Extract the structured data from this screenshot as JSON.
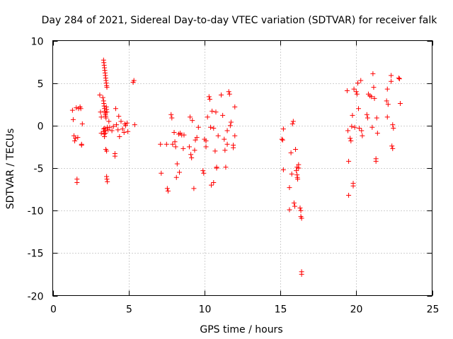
{
  "chart_data": {
    "type": "scatter",
    "title": "Day 284 of 2021, Sidereal Day-to-day VTEC variation (SDTVAR) for receiver falk",
    "xlabel": "GPS time / hours",
    "ylabel": "SDTVAR / TECUs",
    "xlim": [
      0,
      25
    ],
    "ylim": [
      -20,
      10
    ],
    "xticks": [
      0,
      5,
      10,
      15,
      20,
      25
    ],
    "yticks": [
      -20,
      -15,
      -10,
      -5,
      0,
      5,
      10
    ],
    "xtick_labels": [
      "0",
      "5",
      "10",
      "15",
      "20",
      "25"
    ],
    "ytick_labels": [
      "-20",
      "-15",
      "-10",
      "-5",
      "0",
      "5",
      "10"
    ],
    "grid": true,
    "marker": "plus",
    "color": "#ff0000",
    "series": [
      {
        "name": "SDTVAR",
        "points": [
          [
            1.3,
            1.8
          ],
          [
            1.35,
            0.7
          ],
          [
            1.4,
            -1.2
          ],
          [
            1.45,
            -1.8
          ],
          [
            1.5,
            -1.5
          ],
          [
            1.55,
            2.1
          ],
          [
            1.6,
            -6.3
          ],
          [
            1.6,
            -6.7
          ],
          [
            1.65,
            -1.4
          ],
          [
            1.7,
            2.0
          ],
          [
            1.8,
            2.2
          ],
          [
            1.85,
            2.0
          ],
          [
            1.9,
            -2.2
          ],
          [
            1.9,
            -2.3
          ],
          [
            1.95,
            0.2
          ],
          [
            3.1,
            3.6
          ],
          [
            3.15,
            1.6
          ],
          [
            3.2,
            1.0
          ],
          [
            3.2,
            -0.9
          ],
          [
            3.3,
            3.3
          ],
          [
            3.35,
            7.7
          ],
          [
            3.37,
            7.4
          ],
          [
            3.39,
            7.1
          ],
          [
            3.41,
            6.8
          ],
          [
            3.43,
            6.5
          ],
          [
            3.45,
            6.2
          ],
          [
            3.47,
            5.9
          ],
          [
            3.49,
            5.6
          ],
          [
            3.51,
            5.3
          ],
          [
            3.53,
            5.0
          ],
          [
            3.55,
            4.7
          ],
          [
            3.57,
            4.5
          ],
          [
            3.35,
            2.9
          ],
          [
            3.37,
            2.6
          ],
          [
            3.39,
            2.3
          ],
          [
            3.41,
            2.0
          ],
          [
            3.43,
            1.7
          ],
          [
            3.45,
            1.5
          ],
          [
            3.47,
            1.3
          ],
          [
            3.49,
            1.1
          ],
          [
            3.51,
            0.9
          ],
          [
            3.53,
            2.2
          ],
          [
            3.55,
            1.9
          ],
          [
            3.57,
            1.6
          ],
          [
            3.35,
            -0.4
          ],
          [
            3.37,
            -0.7
          ],
          [
            3.39,
            -1.0
          ],
          [
            3.41,
            -1.3
          ],
          [
            3.43,
            -0.3
          ],
          [
            3.45,
            -0.6
          ],
          [
            3.47,
            -0.9
          ],
          [
            3.5,
            -2.8
          ],
          [
            3.55,
            -3.0
          ],
          [
            3.55,
            -6.0
          ],
          [
            3.57,
            -6.3
          ],
          [
            3.6,
            -6.6
          ],
          [
            3.6,
            -0.2
          ],
          [
            3.65,
            -0.5
          ],
          [
            3.7,
            0.5
          ],
          [
            3.75,
            -0.2
          ],
          [
            3.9,
            -0.6
          ],
          [
            4.0,
            -0.1
          ],
          [
            4.1,
            -3.3
          ],
          [
            4.1,
            -3.6
          ],
          [
            4.15,
            2.0
          ],
          [
            4.2,
            0.1
          ],
          [
            4.3,
            -0.5
          ],
          [
            4.35,
            1.1
          ],
          [
            4.4,
            -1.3
          ],
          [
            4.5,
            0.5
          ],
          [
            4.6,
            -0.4
          ],
          [
            4.7,
            -0.8
          ],
          [
            4.75,
            0.2
          ],
          [
            4.8,
            0.0
          ],
          [
            4.9,
            0.3
          ],
          [
            4.95,
            -0.7
          ],
          [
            5.3,
            5.1
          ],
          [
            5.35,
            5.3
          ],
          [
            5.4,
            0.1
          ],
          [
            7.1,
            -2.2
          ],
          [
            7.15,
            -5.6
          ],
          [
            7.5,
            -2.2
          ],
          [
            7.55,
            -7.4
          ],
          [
            7.6,
            -7.7
          ],
          [
            7.8,
            1.3
          ],
          [
            7.85,
            0.9
          ],
          [
            7.9,
            -2.2
          ],
          [
            8.0,
            -0.8
          ],
          [
            8.05,
            -1.9
          ],
          [
            8.1,
            -2.5
          ],
          [
            8.15,
            -6.1
          ],
          [
            8.2,
            -4.5
          ],
          [
            8.3,
            -1.0
          ],
          [
            8.35,
            -5.5
          ],
          [
            8.4,
            -0.9
          ],
          [
            8.5,
            -1.1
          ],
          [
            8.6,
            -2.7
          ],
          [
            8.65,
            -1.1
          ],
          [
            9.0,
            -2.5
          ],
          [
            9.05,
            1.0
          ],
          [
            9.1,
            -3.4
          ],
          [
            9.15,
            -3.8
          ],
          [
            9.2,
            0.6
          ],
          [
            9.3,
            -7.4
          ],
          [
            9.35,
            -2.9
          ],
          [
            9.4,
            -1.7
          ],
          [
            9.5,
            -1.4
          ],
          [
            9.6,
            -0.2
          ],
          [
            9.9,
            -5.3
          ],
          [
            9.95,
            -5.6
          ],
          [
            10.0,
            -1.6
          ],
          [
            10.1,
            -1.8
          ],
          [
            10.1,
            -2.5
          ],
          [
            10.2,
            1.0
          ],
          [
            10.3,
            3.4
          ],
          [
            10.35,
            3.1
          ],
          [
            10.4,
            -0.2
          ],
          [
            10.45,
            -7.0
          ],
          [
            10.5,
            1.7
          ],
          [
            10.6,
            -0.3
          ],
          [
            10.6,
            -6.7
          ],
          [
            10.7,
            -3.0
          ],
          [
            10.75,
            1.6
          ],
          [
            10.8,
            -4.9
          ],
          [
            10.8,
            -5.0
          ],
          [
            10.9,
            -1.2
          ],
          [
            11.1,
            3.6
          ],
          [
            11.2,
            1.2
          ],
          [
            11.3,
            -1.6
          ],
          [
            11.35,
            -2.9
          ],
          [
            11.4,
            -4.9
          ],
          [
            11.5,
            -2.2
          ],
          [
            11.5,
            -0.6
          ],
          [
            11.6,
            4.0
          ],
          [
            11.65,
            3.7
          ],
          [
            11.7,
            0.0
          ],
          [
            11.75,
            0.4
          ],
          [
            11.9,
            -2.3
          ],
          [
            11.9,
            -2.6
          ],
          [
            12.0,
            2.2
          ],
          [
            12.0,
            -1.2
          ],
          [
            15.1,
            -1.6
          ],
          [
            15.15,
            -1.7
          ],
          [
            15.2,
            -0.4
          ],
          [
            15.2,
            -5.2
          ],
          [
            15.6,
            -9.9
          ],
          [
            15.6,
            -7.3
          ],
          [
            15.7,
            -3.2
          ],
          [
            15.75,
            -5.7
          ],
          [
            15.8,
            0.2
          ],
          [
            15.85,
            0.5
          ],
          [
            15.9,
            -9.1
          ],
          [
            15.95,
            -9.5
          ],
          [
            16.0,
            -2.8
          ],
          [
            16.05,
            -5.3
          ],
          [
            16.1,
            -4.9
          ],
          [
            16.1,
            -5.8
          ],
          [
            16.12,
            -6.1
          ],
          [
            16.14,
            -6.3
          ],
          [
            16.2,
            -5.0
          ],
          [
            16.2,
            -4.6
          ],
          [
            16.3,
            -9.7
          ],
          [
            16.35,
            -10.0
          ],
          [
            16.35,
            -10.7
          ],
          [
            16.4,
            -10.9
          ],
          [
            16.4,
            -17.2
          ],
          [
            16.4,
            -17.5
          ],
          [
            19.4,
            4.1
          ],
          [
            19.45,
            -0.6
          ],
          [
            19.5,
            -4.2
          ],
          [
            19.5,
            -8.2
          ],
          [
            19.6,
            -1.5
          ],
          [
            19.65,
            -1.8
          ],
          [
            19.7,
            -0.1
          ],
          [
            19.75,
            1.2
          ],
          [
            19.8,
            -6.8
          ],
          [
            19.8,
            -7.1
          ],
          [
            19.85,
            4.3
          ],
          [
            19.9,
            -0.2
          ],
          [
            20.0,
            4.0
          ],
          [
            20.05,
            3.7
          ],
          [
            20.1,
            5.0
          ],
          [
            20.15,
            2.0
          ],
          [
            20.2,
            -0.3
          ],
          [
            20.3,
            5.3
          ],
          [
            20.35,
            -0.6
          ],
          [
            20.4,
            -1.2
          ],
          [
            20.7,
            1.3
          ],
          [
            20.75,
            0.9
          ],
          [
            20.8,
            3.7
          ],
          [
            20.9,
            3.5
          ],
          [
            21.0,
            3.4
          ],
          [
            21.05,
            -0.2
          ],
          [
            21.1,
            6.1
          ],
          [
            21.15,
            4.5
          ],
          [
            21.2,
            3.2
          ],
          [
            21.3,
            -3.9
          ],
          [
            21.3,
            -4.2
          ],
          [
            21.35,
            0.9
          ],
          [
            21.4,
            -0.9
          ],
          [
            22.0,
            2.9
          ],
          [
            22.05,
            1.0
          ],
          [
            22.05,
            4.3
          ],
          [
            22.1,
            2.5
          ],
          [
            22.3,
            5.9
          ],
          [
            22.3,
            5.2
          ],
          [
            22.35,
            -2.4
          ],
          [
            22.4,
            -2.7
          ],
          [
            22.4,
            0.1
          ],
          [
            22.45,
            -0.3
          ],
          [
            22.8,
            5.6
          ],
          [
            22.85,
            5.5
          ],
          [
            22.9,
            2.6
          ]
        ]
      }
    ]
  }
}
